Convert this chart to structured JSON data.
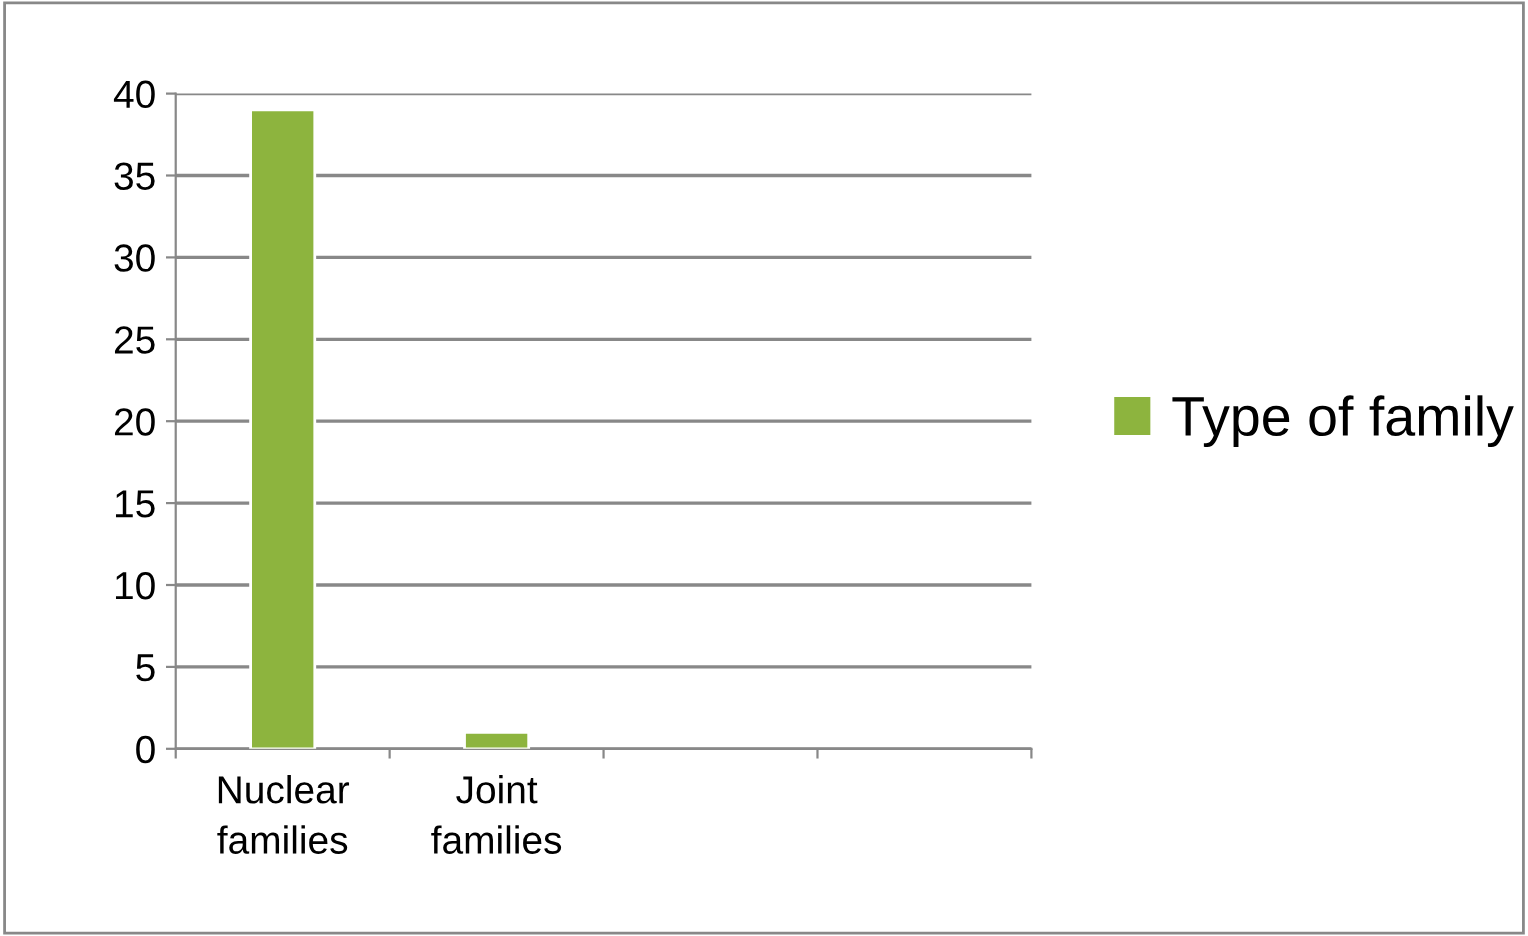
{
  "chart_data": {
    "type": "bar",
    "categories": [
      "Nuclear families",
      "Joint families",
      null,
      null
    ],
    "series": [
      {
        "name": "Type of family",
        "color": "#8db43e",
        "values": [
          39,
          1,
          null,
          null
        ]
      }
    ],
    "ylim": [
      0,
      40
    ],
    "yticks": [
      0,
      5,
      10,
      15,
      20,
      25,
      30,
      35,
      40
    ],
    "grid": "y",
    "legend": "right"
  }
}
